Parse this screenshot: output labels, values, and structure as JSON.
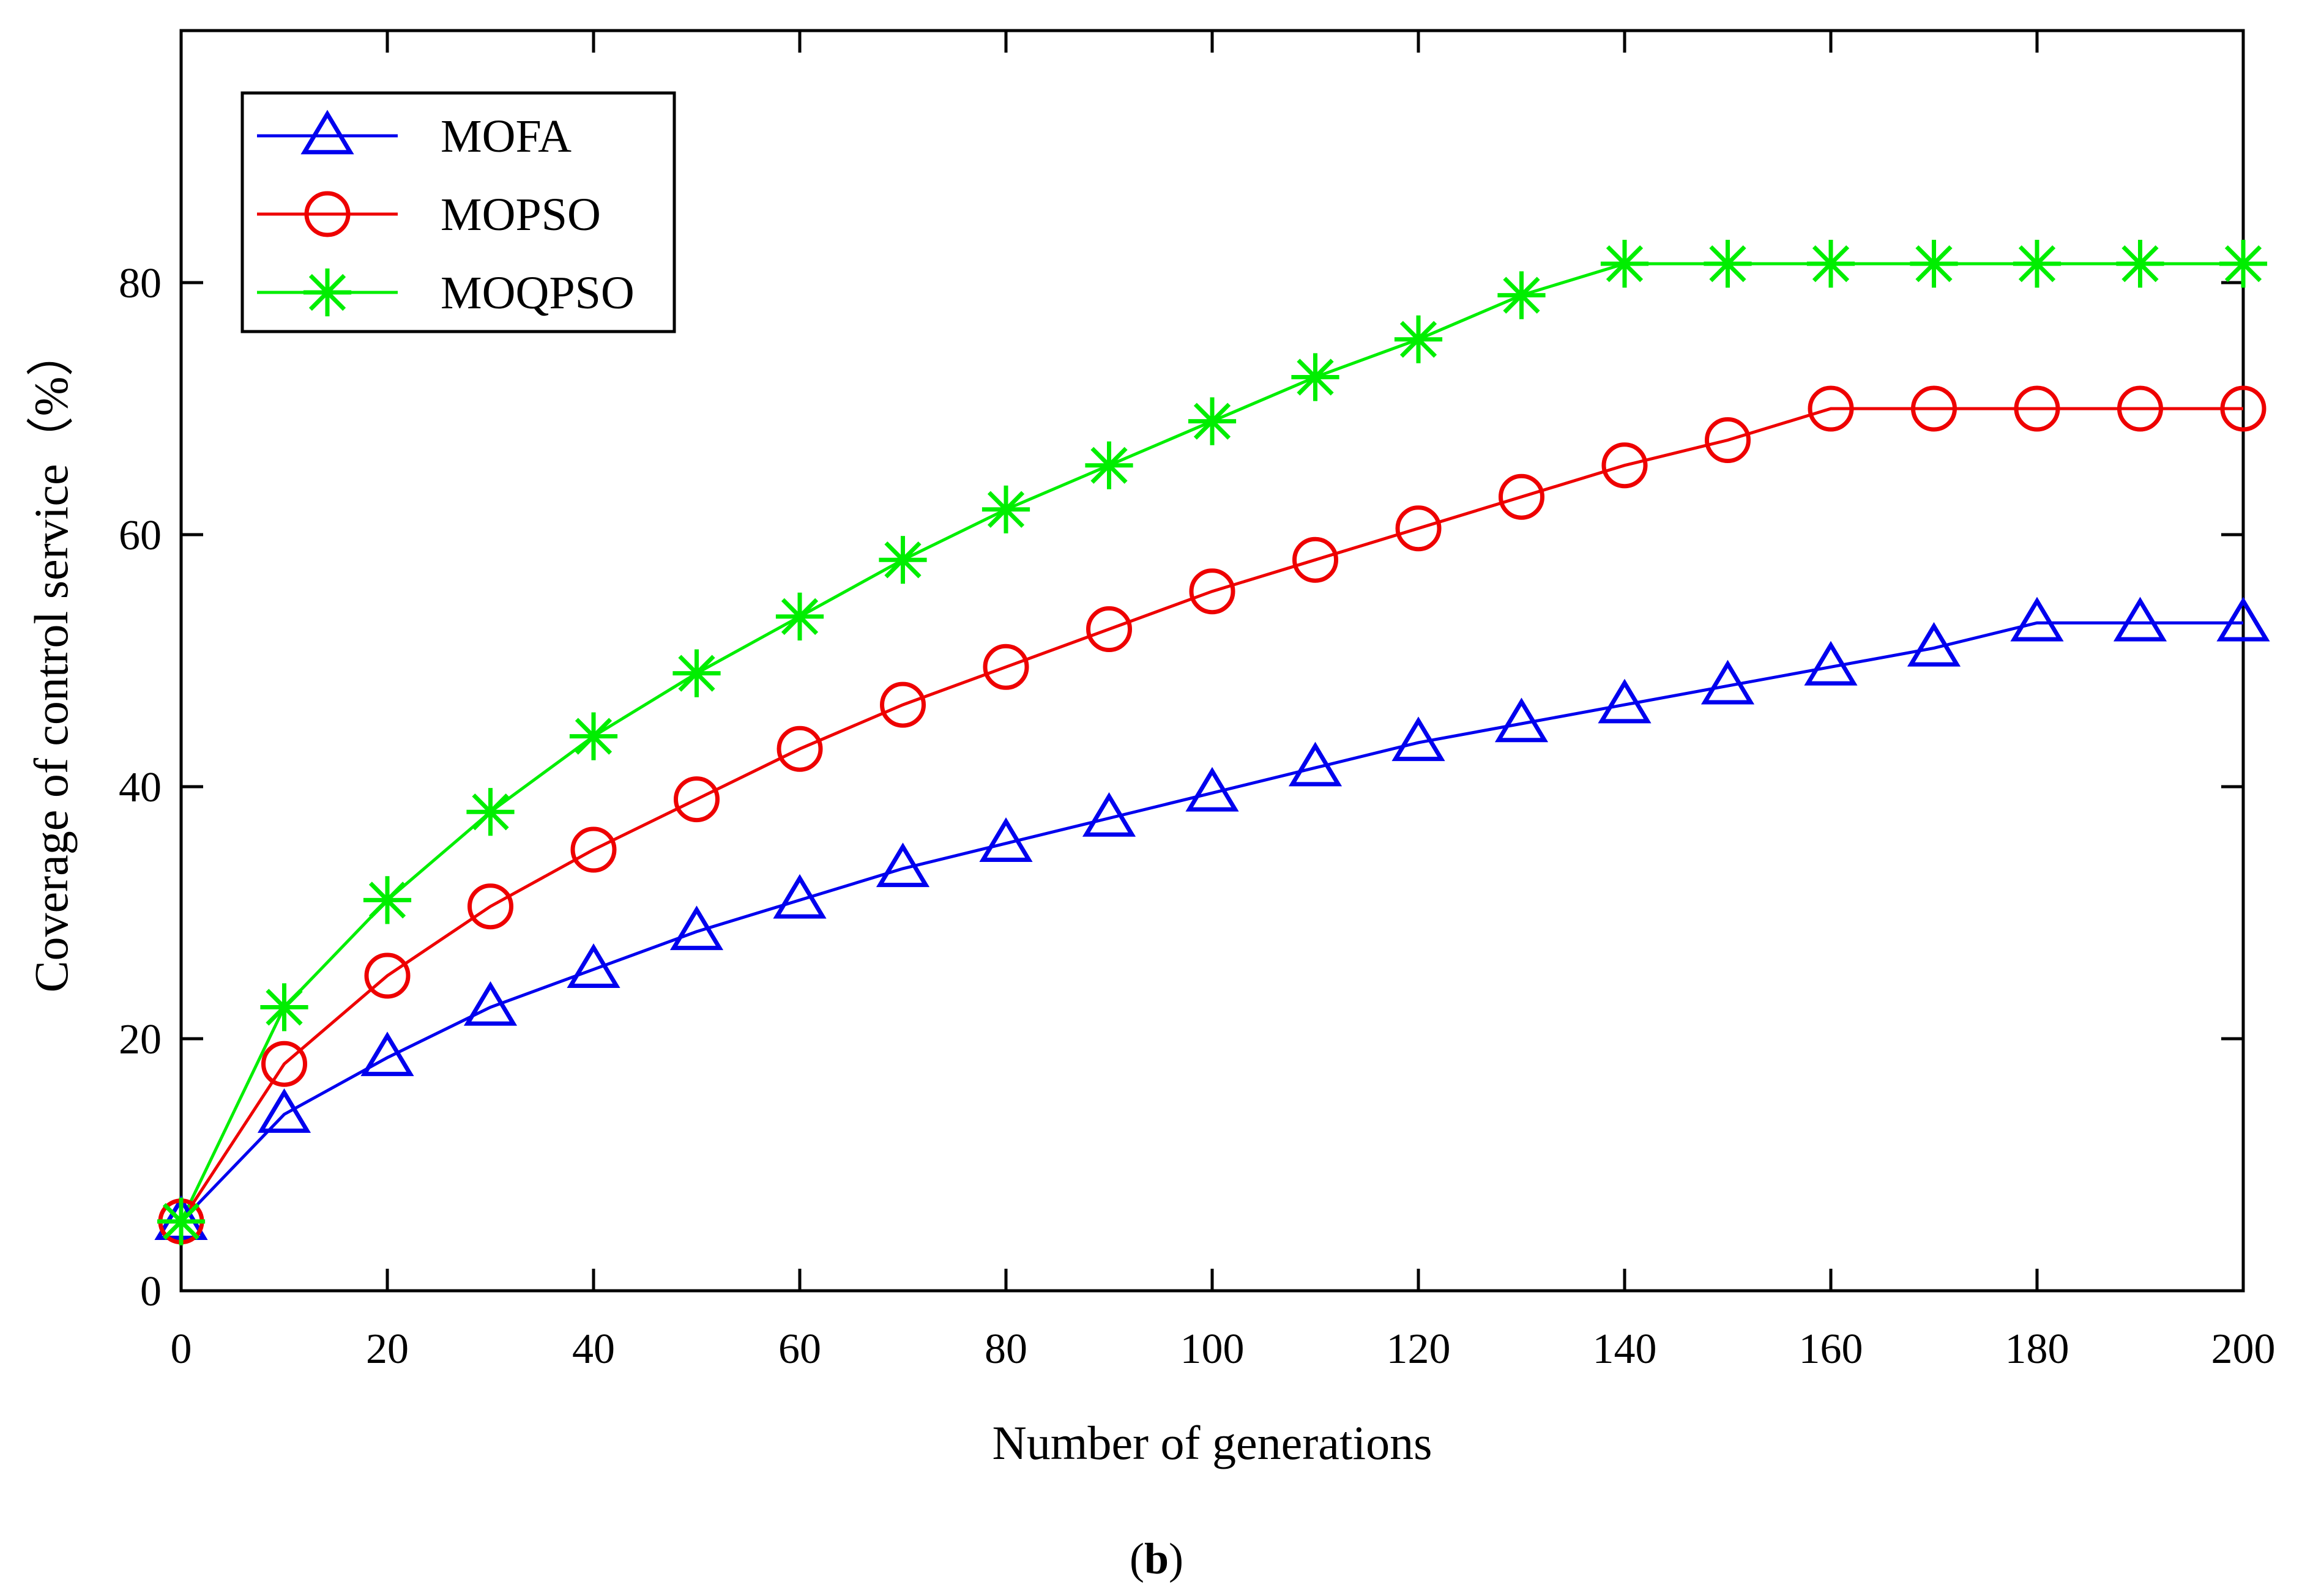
{
  "chart_data": {
    "type": "line",
    "title": "",
    "xlabel": "Number of generations",
    "ylabel": "Coverage of control service（%）",
    "xlim": [
      0,
      200
    ],
    "ylim": [
      0,
      100
    ],
    "xticks": [
      0,
      20,
      40,
      60,
      80,
      100,
      120,
      140,
      160,
      180,
      200
    ],
    "yticks": [
      0,
      20,
      40,
      60,
      80
    ],
    "grid": false,
    "legend_position": "top-left",
    "caption_open": "(",
    "caption_letter": "b",
    "caption_close": ")",
    "x": [
      0,
      10,
      20,
      30,
      40,
      50,
      60,
      70,
      80,
      90,
      100,
      110,
      120,
      130,
      140,
      150,
      160,
      170,
      180,
      190,
      200
    ],
    "series": [
      {
        "name": "MOFA",
        "color": "#0000ee",
        "marker": "triangle",
        "values": [
          5.5,
          14,
          18.5,
          22.5,
          25.5,
          28.5,
          31,
          33.5,
          35.5,
          37.5,
          39.5,
          41.5,
          43.5,
          45,
          46.5,
          48,
          49.5,
          51,
          53,
          53,
          53
        ]
      },
      {
        "name": "MOPSO",
        "color": "#ee0000",
        "marker": "circle",
        "values": [
          5.5,
          18,
          25,
          30.5,
          35,
          39,
          43,
          46.5,
          49.5,
          52.5,
          55.5,
          58,
          60.5,
          63,
          65.5,
          67.5,
          70,
          70,
          70,
          70,
          70
        ]
      },
      {
        "name": "MOQPSO",
        "color": "#00ee00",
        "marker": "star",
        "values": [
          5.5,
          22.5,
          31,
          38,
          44,
          49,
          53.5,
          58,
          62,
          65.5,
          69,
          72.5,
          75.5,
          79,
          81.5,
          81.5,
          81.5,
          81.5,
          81.5,
          81.5,
          81.5
        ]
      }
    ]
  }
}
